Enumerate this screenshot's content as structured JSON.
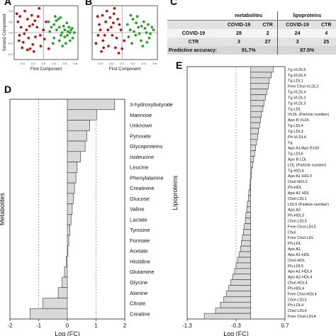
{
  "panels": {
    "A": {
      "letter": "A",
      "xlabel": "First Component",
      "ylabel": "Second Component"
    },
    "B": {
      "letter": "B",
      "xlabel": "First Component"
    },
    "C": {
      "letter": "C"
    },
    "D": {
      "letter": "D"
    },
    "E": {
      "letter": "E"
    }
  },
  "table_c": {
    "group_metabolites": "metabolites",
    "group_lipoproteins": "lipoproteins",
    "col_covid": "COVID-19",
    "col_ctr": "CTR",
    "rows": [
      {
        "label": "COVID-19",
        "met_covid": "28",
        "met_ctr": "2",
        "lip_covid": "24",
        "lip_ctr": "4"
      },
      {
        "label": "CTR",
        "met_covid": "3",
        "met_ctr": "27",
        "lip_covid": "3",
        "lip_ctr": "25"
      }
    ],
    "accuracy_label": "Predictive accuracy:",
    "accuracy_metabolites": "91.7%",
    "accuracy_lipoproteins": "87.5%"
  },
  "chart_data": [
    {
      "panel": "A",
      "type": "scatter",
      "xlabel": "First Component",
      "ylabel": "Second Component",
      "x_ticks": [
        "-0.4",
        "-0.2",
        "0.0",
        "0.2",
        "0.4",
        "0.6"
      ],
      "y_ticks": [
        "0.4",
        "0.2",
        "0.0",
        "-0.2",
        "-0.4"
      ],
      "colors": {
        "COVID-19": "#b01c1c",
        "CTR": "#2ca02c"
      },
      "series": [
        {
          "color": "#b01c1c",
          "points": [
            [
              -0.5,
              0.35
            ],
            [
              -0.42,
              0.1
            ],
            [
              -0.45,
              -0.05
            ],
            [
              -0.38,
              -0.18
            ],
            [
              -0.3,
              0.25
            ],
            [
              -0.25,
              -0.3
            ],
            [
              -0.2,
              0.15
            ],
            [
              -0.15,
              -0.08
            ],
            [
              -0.1,
              0.3
            ],
            [
              -0.05,
              -0.25
            ],
            [
              0.0,
              0.05
            ],
            [
              -0.35,
              0.4
            ],
            [
              -0.28,
              -0.1
            ],
            [
              -0.18,
              -0.35
            ],
            [
              -0.48,
              0.2
            ],
            [
              -0.12,
              0.1
            ],
            [
              -0.22,
              0.32
            ],
            [
              -0.4,
              -0.28
            ],
            [
              0.02,
              -0.12
            ],
            [
              -0.32,
              0.05
            ],
            [
              -0.08,
              0.45
            ],
            [
              -0.26,
              0.12
            ],
            [
              -0.46,
              -0.15
            ],
            [
              -0.16,
              0.22
            ],
            [
              -0.36,
              -0.02
            ],
            [
              -0.06,
              -0.05
            ],
            [
              0.05,
              0.2
            ],
            [
              -0.2,
              -0.22
            ],
            [
              -0.44,
              0.3
            ],
            [
              -0.3,
              -0.32
            ],
            [
              0.1,
              -0.3
            ]
          ]
        },
        {
          "color": "#2ca02c",
          "points": [
            [
              0.1,
              0.2
            ],
            [
              0.15,
              0.1
            ],
            [
              0.2,
              0.15
            ],
            [
              0.25,
              0.05
            ],
            [
              0.3,
              0.1
            ],
            [
              0.35,
              0.0
            ],
            [
              0.4,
              0.05
            ],
            [
              0.45,
              -0.05
            ],
            [
              0.5,
              0.0
            ],
            [
              0.55,
              -0.1
            ],
            [
              0.2,
              -0.1
            ],
            [
              0.3,
              -0.15
            ],
            [
              0.38,
              0.12
            ],
            [
              0.42,
              -0.2
            ],
            [
              0.48,
              0.1
            ],
            [
              0.52,
              0.05
            ],
            [
              0.28,
              0.25
            ],
            [
              0.18,
              -0.2
            ],
            [
              0.33,
              -0.05
            ],
            [
              0.44,
              0.18
            ],
            [
              0.58,
              0.0
            ],
            [
              0.24,
              0.22
            ],
            [
              0.36,
              -0.25
            ],
            [
              0.5,
              -0.15
            ],
            [
              0.12,
              0.02
            ],
            [
              0.4,
              -0.08
            ],
            [
              0.46,
              0.02
            ],
            [
              0.54,
              0.08
            ],
            [
              0.22,
              0.3
            ],
            [
              0.32,
              0.28
            ]
          ]
        }
      ]
    },
    {
      "panel": "B",
      "type": "scatter",
      "xlabel": "First Component",
      "x_ticks": [
        "-0.4",
        "-0.2",
        "0.0",
        "0.2",
        "0.4",
        "0.6"
      ],
      "series": [
        {
          "color": "#b01c1c",
          "points": [
            [
              -0.45,
              0.3
            ],
            [
              -0.4,
              0.05
            ],
            [
              -0.35,
              -0.15
            ],
            [
              -0.3,
              0.2
            ],
            [
              -0.25,
              -0.25
            ],
            [
              -0.2,
              0.1
            ],
            [
              -0.15,
              0.35
            ],
            [
              -0.1,
              -0.1
            ],
            [
              -0.05,
              0.15
            ],
            [
              0.0,
              -0.3
            ],
            [
              -0.38,
              -0.35
            ],
            [
              -0.28,
              0.4
            ],
            [
              -0.18,
              -0.05
            ],
            [
              -0.08,
              0.25
            ],
            [
              -0.42,
              0.15
            ],
            [
              -0.32,
              -0.05
            ],
            [
              -0.22,
              0.28
            ],
            [
              -0.12,
              -0.28
            ],
            [
              -0.02,
              0.05
            ],
            [
              -0.48,
              -0.2
            ],
            [
              -0.26,
              0.05
            ],
            [
              -0.14,
              0.45
            ],
            [
              -0.36,
              0.32
            ],
            [
              0.04,
              -0.15
            ],
            [
              -0.06,
              -0.38
            ],
            [
              -0.44,
              -0.05
            ],
            [
              -0.16,
              0.18
            ],
            [
              -0.34,
              -0.28
            ]
          ]
        },
        {
          "color": "#2ca02c",
          "points": [
            [
              0.1,
              0.15
            ],
            [
              0.15,
              0.05
            ],
            [
              0.2,
              0.25
            ],
            [
              0.25,
              -0.05
            ],
            [
              0.3,
              0.1
            ],
            [
              0.35,
              -0.15
            ],
            [
              0.4,
              0.2
            ],
            [
              0.45,
              0.0
            ],
            [
              0.5,
              -0.1
            ],
            [
              0.55,
              0.1
            ],
            [
              0.18,
              -0.2
            ],
            [
              0.28,
              0.3
            ],
            [
              0.38,
              -0.25
            ],
            [
              0.48,
              0.15
            ],
            [
              0.22,
              0.02
            ],
            [
              0.32,
              -0.02
            ],
            [
              0.42,
              0.08
            ],
            [
              0.52,
              -0.02
            ],
            [
              0.12,
              -0.08
            ],
            [
              0.58,
              0.05
            ],
            [
              0.26,
              0.18
            ],
            [
              0.36,
              0.12
            ],
            [
              0.46,
              -0.18
            ],
            [
              0.16,
              0.32
            ]
          ]
        }
      ]
    },
    {
      "panel": "D",
      "type": "bar",
      "orientation": "horizontal",
      "ylabel": "Metabolites",
      "xlabel": "Log (FC)",
      "xlim": [
        -2,
        2
      ],
      "x_ticks": [
        -2,
        -1,
        0,
        1,
        2
      ],
      "x_tick_labels": [
        "-2",
        "-1",
        "0",
        "1",
        "2"
      ],
      "dashed_lines": [
        -1,
        1
      ],
      "categories": [
        "3-hydroxybutyrate",
        "Mannose",
        "Unknown",
        "Pyruvate",
        "Glycoproteins",
        "Isoleucine",
        "Leucine",
        "Phenylalanine",
        "Creatinine",
        "Glucose",
        "Valine",
        "Lactate",
        "Tyrosine",
        "Formate",
        "Acetate",
        "Histidine",
        "Glutamine",
        "Glycine",
        "Alanine",
        "Citrate",
        "Creatine"
      ],
      "values": [
        1.65,
        1.02,
        0.78,
        0.68,
        0.62,
        0.46,
        0.34,
        0.3,
        0.25,
        0.21,
        0.17,
        0.13,
        0.09,
        0.05,
        0.02,
        -0.04,
        -0.1,
        -0.18,
        -0.32,
        -0.85,
        -1.3
      ]
    },
    {
      "panel": "E",
      "type": "bar",
      "orientation": "horizontal",
      "ylabel": "Lipoproteins",
      "xlabel": "Log (FC)",
      "xlim": [
        -1.3,
        0.7
      ],
      "x_ticks": [
        -1.3,
        -0.3,
        0.7
      ],
      "x_tick_labels": [
        "-1.3",
        "-0.3",
        "0.7"
      ],
      "dashed_lines": [
        -0.3
      ],
      "categories": [
        "Tg-VLDL5",
        "Tg-VLDL4",
        "Tg-LDL1",
        "Free Chol-VLDL2",
        "Tg-VLDL4",
        "Tg-VLDL2",
        "Tg-VLDL3",
        "Tg-LDL",
        "VLDL (Particle number)",
        "Apo B VLDL",
        "Tg-LDL4",
        "Tg-LDL3",
        "Ph-VLDL4",
        "Tg",
        "Apo A1/Apo B100",
        "Tg-LDL6",
        "Apo B LDL",
        "LDL (Particle number)",
        "Tg-HDL4",
        "Apo A1 HDL3",
        "Chol-HDL3",
        "Ph-HDL",
        "Apo A2 HDL",
        "Chol-LDL1",
        "LDL5 (Particle number)",
        "Apo A2",
        "Ph-HDL3",
        "Chol-LDL5",
        "Free Chol-LDL5",
        "Chol",
        "Free Chol-LDL",
        "Ph-LDL",
        "Apo A1",
        "Apo A1-HDL",
        "Chol-HDL",
        "Ph-LDL5",
        "Apo A1-HDL4",
        "Apo A2-HDL4",
        "Chol-HDL4",
        "Ph-HDL4",
        "Free Chol-HDL4",
        "Chol-LDL5",
        "Ph-LDL4",
        "Chol-LDL4",
        "Free Chol-LDL4"
      ],
      "values": [
        0.46,
        0.42,
        0.38,
        0.36,
        0.33,
        0.3,
        0.27,
        0.25,
        0.22,
        0.2,
        0.18,
        0.16,
        0.14,
        0.12,
        0.1,
        0.08,
        0.06,
        0.04,
        0.02,
        0.0,
        -0.01,
        -0.02,
        -0.04,
        -0.05,
        -0.07,
        -0.08,
        -0.1,
        -0.11,
        -0.13,
        -0.15,
        -0.17,
        -0.19,
        -0.21,
        -0.24,
        -0.27,
        -0.3,
        -0.33,
        -0.37,
        -0.41,
        -0.45,
        -0.5,
        -0.55,
        -0.62,
        -0.72,
        -0.95
      ]
    }
  ]
}
